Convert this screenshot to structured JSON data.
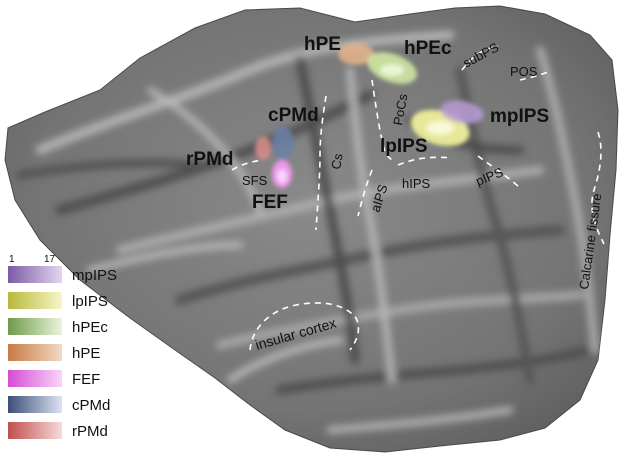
{
  "rois": [
    {
      "id": "hPE",
      "label": "hPE",
      "color_low": "#f3d9c4",
      "color_high": "#c87b45"
    },
    {
      "id": "hPEc",
      "label": "hPEc",
      "color_low": "#eaf5dc",
      "color_high": "#6f9b4a"
    },
    {
      "id": "cPMd",
      "label": "cPMd",
      "color_low": "#dbe3f3",
      "color_high": "#3d4e78"
    },
    {
      "id": "rPMd",
      "label": "rPMd",
      "color_low": "#f6dada",
      "color_high": "#c0504d"
    },
    {
      "id": "FEF",
      "label": "FEF",
      "color_low": "#f9d4f9",
      "color_high": "#d64cd6"
    },
    {
      "id": "lpIPS",
      "label": "lpIPS",
      "color_low": "#f6f6c8",
      "color_high": "#b8b83a"
    },
    {
      "id": "mpIPS",
      "label": "mpIPS",
      "color_low": "#e2d6ef",
      "color_high": "#7b5aa6"
    }
  ],
  "sulci": {
    "subPS": "subPS",
    "POS": "POS",
    "PoCs": "PoCs",
    "Cs": "Cs",
    "SFS": "SFS",
    "aIPS": "aIPS",
    "hIPS": "hIPS",
    "pIPS": "pIPS",
    "calcarine": "Calcarine fissure",
    "insular": "insular cortex"
  },
  "legend": {
    "scale_min": "1",
    "scale_max": "17",
    "items": [
      {
        "label": "mpIPS",
        "color_low": "#e2d6ef",
        "color_high": "#7b5aa6"
      },
      {
        "label": "lpIPS",
        "color_low": "#f6f6c8",
        "color_high": "#b8b83a"
      },
      {
        "label": "hPEc",
        "color_low": "#eaf5dc",
        "color_high": "#6f9b4a"
      },
      {
        "label": "hPE",
        "color_low": "#f3d9c4",
        "color_high": "#c87b45"
      },
      {
        "label": "FEF",
        "color_low": "#f9d4f9",
        "color_high": "#d64cd6"
      },
      {
        "label": "cPMd",
        "color_low": "#dbe3f3",
        "color_high": "#3d4e78"
      },
      {
        "label": "rPMd",
        "color_low": "#f6dada",
        "color_high": "#c0504d"
      }
    ]
  }
}
